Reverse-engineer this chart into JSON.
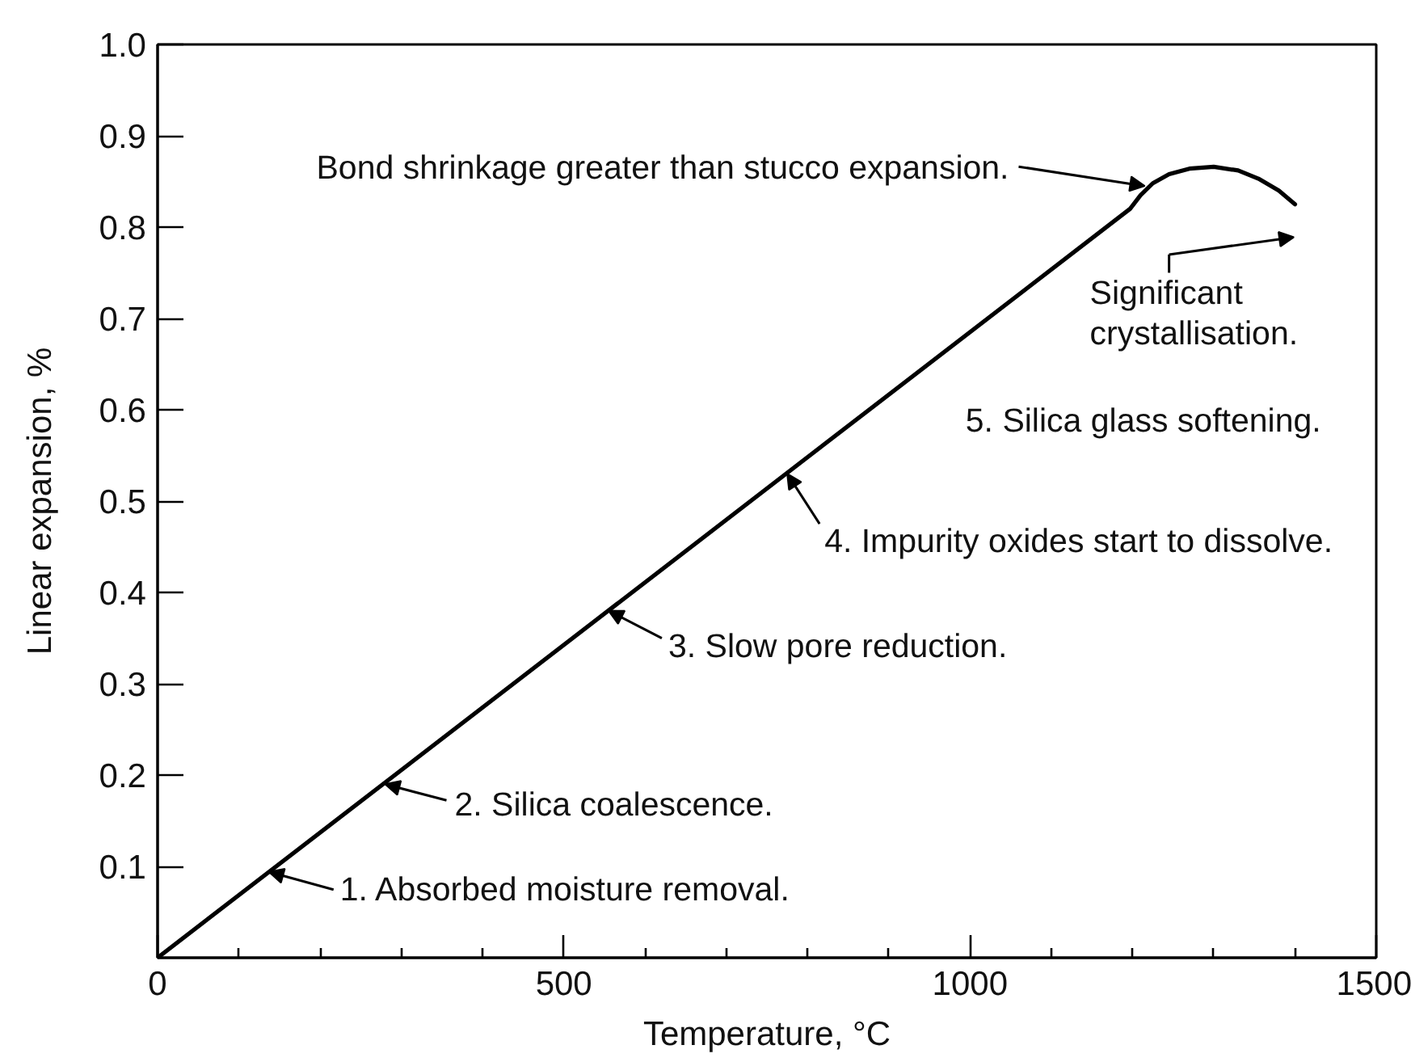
{
  "chart_data": {
    "type": "line",
    "xlabel": "Temperature, °C",
    "ylabel": "Linear expansion, %",
    "x": [
      0,
      1197,
      1210,
      1225,
      1245,
      1270,
      1300,
      1330,
      1355,
      1380,
      1400
    ],
    "series": [
      {
        "color": "#000000",
        "values": [
          0,
          0.82,
          0.835,
          0.848,
          0.858,
          0.864,
          0.866,
          0.862,
          0.853,
          0.84,
          0.825
        ]
      }
    ],
    "xlim": [
      0,
      1500
    ],
    "ylim": [
      0,
      1
    ],
    "xticks": [
      0,
      {
        "value": 100,
        "label": null
      },
      {
        "value": 200,
        "label": null
      },
      {
        "value": 300,
        "label": null
      },
      {
        "value": 400,
        "label": null
      },
      500,
      {
        "value": 600,
        "label": null
      },
      {
        "value": 700,
        "label": null
      },
      {
        "value": 800,
        "label": null
      },
      {
        "value": 900,
        "label": null
      },
      1000,
      {
        "value": 1100,
        "label": null
      },
      {
        "value": 1200,
        "label": null
      },
      {
        "value": 1300,
        "label": null
      },
      {
        "value": 1400,
        "label": null
      },
      1500
    ],
    "yticks": [
      0.1,
      0.2,
      0.3,
      0.4,
      0.5,
      0.6,
      0.7,
      0.8,
      0.9,
      {
        "value": 1,
        "label": "1.0"
      }
    ],
    "line_style": "solid",
    "annotations": [
      {
        "text": "1. Absorbed moisture removal.",
        "x": 137,
        "y": 0.094
      },
      {
        "text": "2. Silica coalescence.",
        "x": 280,
        "y": 0.19
      },
      {
        "text": "3. Slow pore reduction.",
        "x": 555,
        "y": 0.38
      },
      {
        "text": "4. Impurity oxides start to dissolve.",
        "x": 775,
        "y": 0.53
      },
      "5. Silica glass softening.",
      {
        "text": "Bond shrinkage greater than stucco expansion.",
        "x": 1215,
        "y": 0.845
      },
      "Significant\ncrystallisation."
    ]
  }
}
